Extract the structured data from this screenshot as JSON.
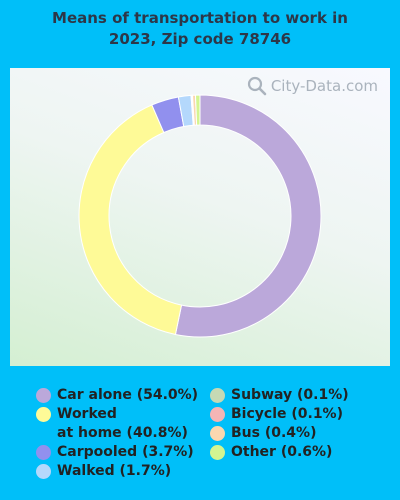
{
  "title": {
    "line1": "Means of transportation to work in",
    "line2": "2023, Zip code 78746"
  },
  "watermark": {
    "text": "City-Data.com",
    "icon": "magnifier-icon"
  },
  "chart_data": {
    "type": "pie",
    "style": "donut",
    "title": "Means of transportation to work in 2023, Zip code 78746",
    "unit": "%",
    "legend_placement": "bottom",
    "slices": [
      {
        "label": "Car alone (54.0%)",
        "value": 54.0,
        "color": "#bba8da"
      },
      {
        "label": "Worked at home (40.8%)",
        "value": 40.8,
        "color": "#fefa97"
      },
      {
        "label": "Carpooled (3.7%)",
        "value": 3.7,
        "color": "#9190ee"
      },
      {
        "label": "Walked (1.7%)",
        "value": 1.7,
        "color": "#b4d8fc"
      },
      {
        "label": "Subway (0.1%)",
        "value": 0.1,
        "color": "#c5d9b4"
      },
      {
        "label": "Bicycle (0.1%)",
        "value": 0.1,
        "color": "#f5b5b5"
      },
      {
        "label": "Bus (0.4%)",
        "value": 0.4,
        "color": "#fbd7b0"
      },
      {
        "label": "Other (0.6%)",
        "value": 0.6,
        "color": "#d3f591"
      }
    ]
  },
  "legend": {
    "left": [
      {
        "lines": [
          "Car alone (54.0%)"
        ],
        "color": "#bba8da"
      },
      {
        "lines": [
          "Worked",
          "at home (40.8%)"
        ],
        "color": "#fefa97"
      },
      {
        "lines": [
          "Carpooled (3.7%)"
        ],
        "color": "#9190ee"
      },
      {
        "lines": [
          "Walked (1.7%)"
        ],
        "color": "#b4d8fc"
      }
    ],
    "right": [
      {
        "lines": [
          "Subway (0.1%)"
        ],
        "color": "#c5d9b4"
      },
      {
        "lines": [
          "Bicycle (0.1%)"
        ],
        "color": "#f5b5b5"
      },
      {
        "lines": [
          "Bus (0.4%)"
        ],
        "color": "#fbd7b0"
      },
      {
        "lines": [
          "Other (0.6%)"
        ],
        "color": "#d3f591"
      }
    ]
  }
}
